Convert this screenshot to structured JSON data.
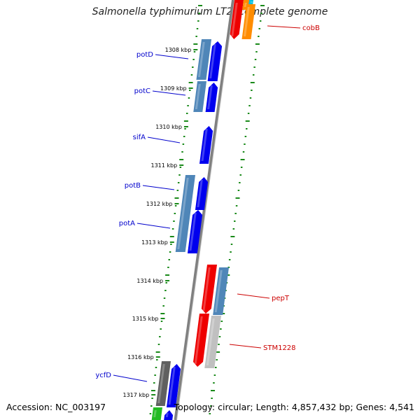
{
  "title": "Salmonella typhimurium LT2, complete genome",
  "footer": {
    "accession": "Accession: NC_003197",
    "topology": "Topology: circular; Length: 4,857,432 bp; Genes: 4,541"
  },
  "colors": {
    "forward_label": "#0000cc",
    "reverse_label": "#cc0000",
    "backbone": "#808080",
    "tick_green": "#1a8a1a",
    "blue_cds": "#0000ee",
    "steel_cds": "#4f86b8",
    "red_cds": "#ee0000",
    "orange_cds": "#ff8c00",
    "cyan_cds": "#00c0e0",
    "grey_cds": "#c0c0c0",
    "dark_grey_cds": "#606060",
    "green_cds": "#22bb22"
  },
  "kbp_labels": [
    "1308 kbp",
    "1309 kbp",
    "1310 kbp",
    "1311 kbp",
    "1312 kbp",
    "1313 kbp",
    "1314 kbp",
    "1315 kbp",
    "1316 kbp",
    "1317 kbp"
  ],
  "forward_genes": [
    "potD",
    "potC",
    "sifA",
    "potB",
    "potA",
    "ycfD"
  ],
  "reverse_genes": [
    "cobB",
    "pepT",
    "STM1228"
  ]
}
